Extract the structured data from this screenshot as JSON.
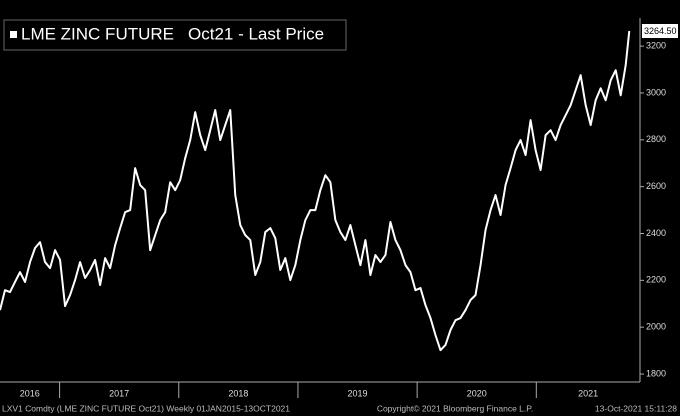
{
  "chart_data": {
    "type": "line",
    "title": "LME ZINC FUTURE",
    "subtitle": "Oct21 - Last Price",
    "footer_left": "LXV1 Comdty (LME ZINC FUTURE  Oct21)  Weekly 01JAN2015-13OCT2021",
    "footer_center": "Copyright© 2021 Bloomberg Finance L.P.",
    "footer_right": "13-Oct-2021 15:11:28",
    "color": "#ffffff",
    "last_value": 3264.5,
    "last_value_label": "3264.50",
    "x": [
      2016.5,
      2016.542,
      2016.584,
      2016.626,
      2016.668,
      2016.71,
      2016.752,
      2016.794,
      2016.836,
      2016.878,
      2016.92,
      2016.962,
      2017.004,
      2017.046,
      2017.088,
      2017.13,
      2017.172,
      2017.214,
      2017.256,
      2017.298,
      2017.34,
      2017.382,
      2017.424,
      2017.466,
      2017.508,
      2017.55,
      2017.592,
      2017.634,
      2017.676,
      2017.718,
      2017.76,
      2017.802,
      2017.844,
      2017.886,
      2017.928,
      2017.97,
      2018.012,
      2018.054,
      2018.096,
      2018.138,
      2018.18,
      2018.222,
      2018.264,
      2018.306,
      2018.348,
      2018.39,
      2018.432,
      2018.474,
      2018.516,
      2018.558,
      2018.6,
      2018.642,
      2018.684,
      2018.726,
      2018.768,
      2018.81,
      2018.852,
      2018.894,
      2018.936,
      2018.978,
      2019.02,
      2019.062,
      2019.104,
      2019.146,
      2019.188,
      2019.23,
      2019.272,
      2019.314,
      2019.356,
      2019.398,
      2019.44,
      2019.482,
      2019.524,
      2019.566,
      2019.608,
      2019.65,
      2019.692,
      2019.734,
      2019.776,
      2019.818,
      2019.86,
      2019.902,
      2019.944,
      2019.986,
      2020.028,
      2020.07,
      2020.112,
      2020.154,
      2020.196,
      2020.238,
      2020.28,
      2020.322,
      2020.364,
      2020.406,
      2020.448,
      2020.49,
      2020.532,
      2020.574,
      2020.616,
      2020.658,
      2020.7,
      2020.742,
      2020.784,
      2020.826,
      2020.868,
      2020.91,
      2020.952,
      2020.994,
      2021.036,
      2021.078,
      2021.12,
      2021.162,
      2021.204,
      2021.246,
      2021.288,
      2021.33,
      2021.372,
      2021.414,
      2021.456,
      2021.498,
      2021.54,
      2021.582,
      2021.624,
      2021.666,
      2021.708,
      2021.75,
      2021.78
    ],
    "values": [
      2073,
      2158,
      2150,
      2193,
      2235,
      2193,
      2278,
      2338,
      2363,
      2278,
      2252,
      2329,
      2287,
      2090,
      2137,
      2201,
      2278,
      2210,
      2244,
      2287,
      2180,
      2295,
      2252,
      2350,
      2423,
      2491,
      2500,
      2679,
      2607,
      2585,
      2329,
      2393,
      2457,
      2491,
      2619,
      2585,
      2628,
      2722,
      2799,
      2918,
      2820,
      2756,
      2841,
      2927,
      2799,
      2863,
      2927,
      2564,
      2436,
      2393,
      2372,
      2223,
      2278,
      2406,
      2423,
      2380,
      2244,
      2295,
      2201,
      2265,
      2372,
      2457,
      2500,
      2500,
      2585,
      2649,
      2619,
      2457,
      2406,
      2372,
      2436,
      2350,
      2265,
      2372,
      2223,
      2308,
      2278,
      2308,
      2449,
      2372,
      2329,
      2265,
      2235,
      2158,
      2167,
      2094,
      2039,
      1966,
      1902,
      1924,
      1988,
      2030,
      2039,
      2073,
      2116,
      2137,
      2265,
      2415,
      2500,
      2564,
      2479,
      2607,
      2679,
      2756,
      2799,
      2735,
      2884,
      2756,
      2671,
      2820,
      2841,
      2799,
      2863,
      2905,
      2948,
      3012,
      3076,
      2948,
      2863,
      2969,
      3020,
      2969,
      3054,
      3097,
      2990,
      3119,
      3264.5
    ],
    "xlim": [
      2016.5,
      2021.87
    ],
    "xticks": [
      2016,
      2017,
      2018,
      2019,
      2020,
      2021
    ],
    "ylim": [
      1766,
      3320
    ],
    "yticks": [
      1800,
      2000,
      2200,
      2400,
      2600,
      2800,
      3000,
      3200
    ]
  }
}
